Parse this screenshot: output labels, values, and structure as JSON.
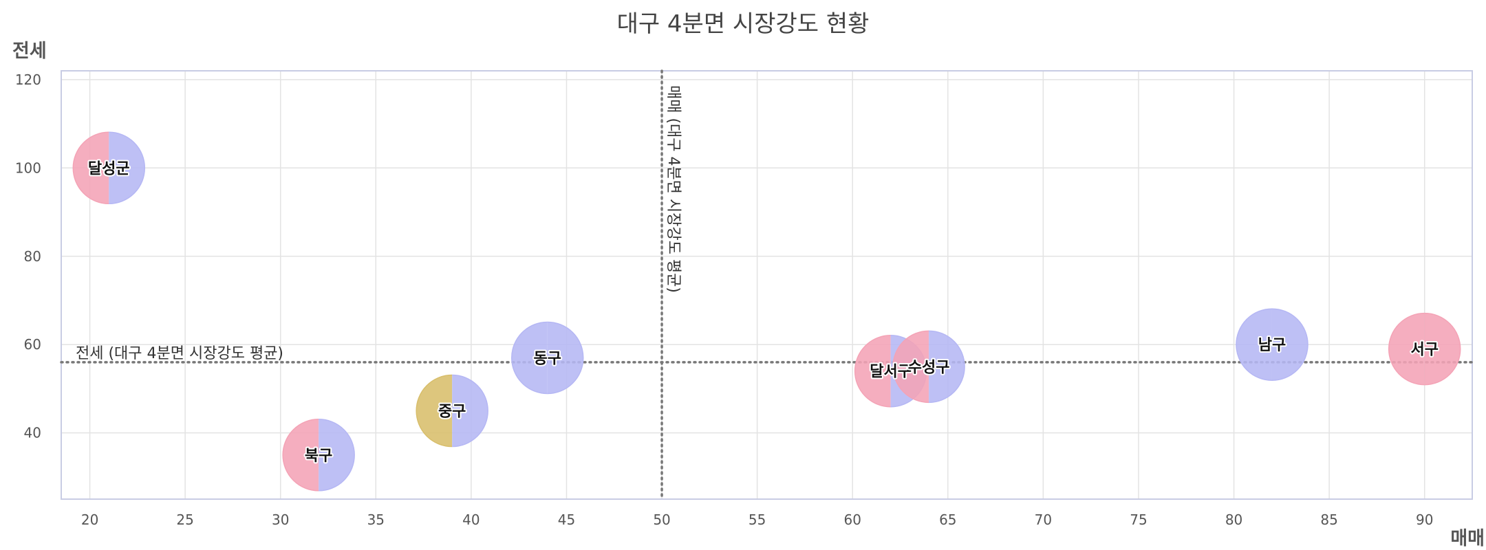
{
  "chart_data": {
    "type": "scatter",
    "title": "대구 4분면 시장강도 현황",
    "xlabel": "매매",
    "ylabel": "전세",
    "xlim": [
      18.5,
      92.5
    ],
    "ylim": [
      25,
      122
    ],
    "x_ticks": [
      20,
      25,
      30,
      35,
      40,
      45,
      50,
      55,
      60,
      65,
      70,
      75,
      80,
      85,
      90
    ],
    "y_ticks": [
      40,
      60,
      80,
      100,
      120
    ],
    "grid": true,
    "reference_lines": {
      "x": {
        "value": 50,
        "label": "매매 (대구 4분면 시장강도 평균)"
      },
      "y": {
        "value": 56,
        "label": "전세 (대구 4분면 시장강도 평균)"
      }
    },
    "colors": {
      "pink": "#f4a3b6",
      "blue": "#b5b7f4",
      "gold": "#d8be6b",
      "grid": "#e3e3e3",
      "axis": "#c8cce4",
      "reference": "#777777"
    },
    "points": [
      {
        "label": "달성군",
        "x": 21,
        "y": 100,
        "left_color": "pink",
        "right_color": "blue"
      },
      {
        "label": "북구",
        "x": 32,
        "y": 35,
        "left_color": "pink",
        "right_color": "blue"
      },
      {
        "label": "중구",
        "x": 39,
        "y": 45,
        "left_color": "gold",
        "right_color": "blue"
      },
      {
        "label": "동구",
        "x": 44,
        "y": 57,
        "left_color": "blue",
        "right_color": "blue"
      },
      {
        "label": "달서구",
        "x": 62,
        "y": 54,
        "left_color": "pink",
        "right_color": "blue"
      },
      {
        "label": "수성구",
        "x": 64,
        "y": 55,
        "left_color": "pink",
        "right_color": "blue"
      },
      {
        "label": "남구",
        "x": 82,
        "y": 60,
        "left_color": "blue",
        "right_color": "blue"
      },
      {
        "label": "서구",
        "x": 90,
        "y": 59,
        "left_color": "pink",
        "right_color": "pink"
      }
    ]
  }
}
